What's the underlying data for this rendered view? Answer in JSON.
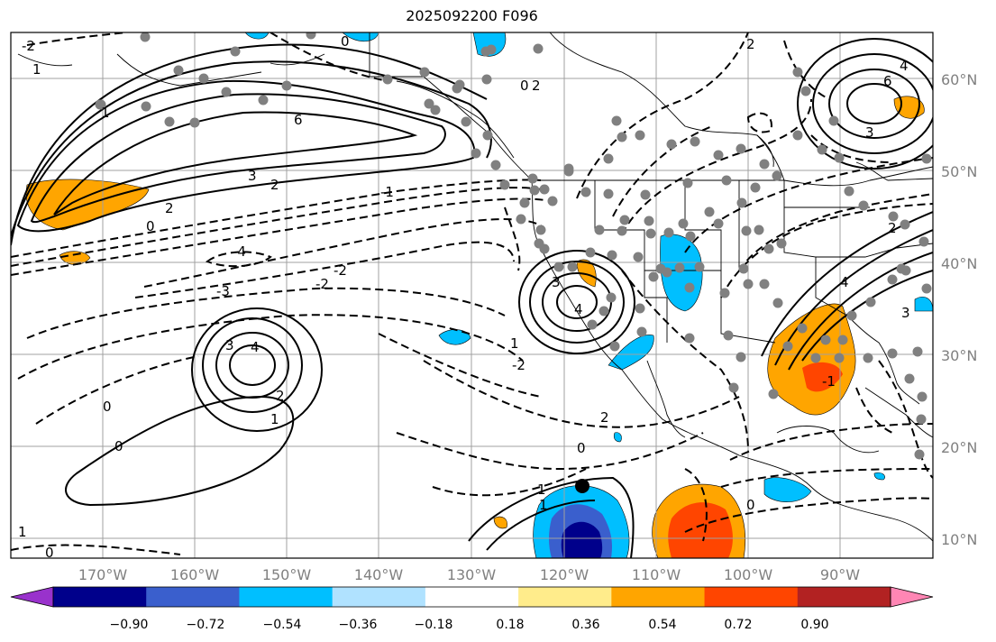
{
  "title": "2025092200 F096",
  "lon_labels": [
    "170°W",
    "160°W",
    "150°W",
    "140°W",
    "130°W",
    "120°W",
    "110°W",
    "100°W",
    "90°W"
  ],
  "lat_labels": [
    "60°N",
    "50°N",
    "40°N",
    "30°N",
    "20°N",
    "10°N"
  ],
  "colorbar": {
    "ticks": [
      "−0.90",
      "−0.72",
      "−0.54",
      "−0.36",
      "−0.18",
      "0.18",
      "0.36",
      "0.54",
      "0.72",
      "0.90"
    ],
    "colors": [
      "#9932cc",
      "#00008b",
      "#3a5fcd",
      "#00bfff",
      "#b0e2ff",
      "#ffffff",
      "#ffec8b",
      "#ffa500",
      "#ff4500",
      "#b22222",
      "#ff86b4"
    ]
  },
  "contour_labels": [
    "0",
    "2",
    "3",
    "2",
    "1",
    "0",
    "1",
    "2",
    "3",
    "4",
    "6",
    "-4",
    "-3",
    "-2",
    "-2",
    "-1",
    "0",
    "3",
    "4",
    "2",
    "1",
    "0",
    "2",
    "1",
    "0",
    "3",
    "4",
    "6",
    "3",
    "1",
    "-1",
    "4",
    "2",
    "0",
    "1",
    "2",
    "0",
    "-2",
    "0",
    "1",
    "-2"
  ],
  "stations_note": ""
}
